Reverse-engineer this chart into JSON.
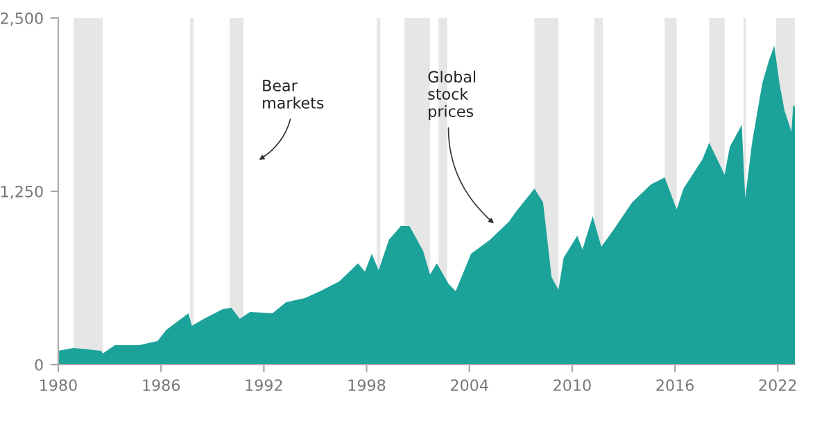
{
  "chart_data": {
    "type": "area",
    "x": [
      1980.0,
      1980.9,
      1982.5,
      1982.6,
      1983.3,
      1984.7,
      1985.8,
      1986.3,
      1987.6,
      1987.8,
      1988.5,
      1989.6,
      1990.1,
      1990.6,
      1991.2,
      1992.5,
      1993.3,
      1994.4,
      1995.3,
      1996.4,
      1997.5,
      1997.9,
      1998.3,
      1998.7,
      1999.3,
      2000.0,
      2000.5,
      2001.3,
      2001.7,
      2002.1,
      2002.8,
      2003.2,
      2004.1,
      2005.2,
      2006.3,
      2006.7,
      2007.8,
      2008.3,
      2008.8,
      2009.2,
      2009.5,
      2010.3,
      2010.6,
      2011.2,
      2011.7,
      2012.4,
      2013.5,
      2014.6,
      2015.4,
      2016.1,
      2016.5,
      2017.6,
      2018.0,
      2018.9,
      2019.2,
      2019.9,
      2020.1,
      2020.5,
      2021.1,
      2021.5,
      2021.8,
      2022.1,
      2022.4,
      2022.8,
      2022.9,
      2023.0
    ],
    "series": [
      {
        "color": "#1ba39a",
        "values": [
          100,
          120,
          100,
          80,
          140,
          140,
          170,
          250,
          370,
          280,
          330,
          400,
          410,
          330,
          380,
          370,
          450,
          480,
          530,
          600,
          730,
          670,
          800,
          680,
          900,
          1000,
          1000,
          820,
          650,
          730,
          580,
          530,
          800,
          900,
          1030,
          1100,
          1270,
          1170,
          630,
          540,
          770,
          930,
          830,
          1070,
          850,
          970,
          1170,
          1300,
          1350,
          1120,
          1270,
          1480,
          1600,
          1370,
          1570,
          1730,
          1200,
          1600,
          2030,
          2200,
          2300,
          2030,
          1830,
          1680,
          1870,
          1860
        ]
      }
    ],
    "xlim": [
      1980,
      2023
    ],
    "xticks": [
      1980,
      1986,
      1992,
      1998,
      2004,
      2010,
      2016,
      2022
    ],
    "ylim": [
      0,
      2500
    ],
    "yticks": [
      0,
      {
        "value": 1250,
        "label": "1,250"
      },
      {
        "value": 2500,
        "label": "2,500"
      }
    ],
    "bands": [
      {
        "axis": "x",
        "from": 1980.9,
        "to": 1982.6,
        "color": "#e6e6e6"
      },
      {
        "axis": "x",
        "from": 1987.7,
        "to": 1987.9,
        "color": "#e6e6e6"
      },
      {
        "axis": "x",
        "from": 1990.0,
        "to": 1990.8,
        "color": "#e6e6e6"
      },
      {
        "axis": "x",
        "from": 1998.6,
        "to": 1998.8,
        "color": "#e6e6e6"
      },
      {
        "axis": "x",
        "from": 2000.2,
        "to": 2001.7,
        "color": "#e6e6e6"
      },
      {
        "axis": "x",
        "from": 2002.2,
        "to": 2002.7,
        "color": "#e6e6e6"
      },
      {
        "axis": "x",
        "from": 2007.8,
        "to": 2009.2,
        "color": "#e6e6e6"
      },
      {
        "axis": "x",
        "from": 2011.3,
        "to": 2011.8,
        "color": "#e6e6e6"
      },
      {
        "axis": "x",
        "from": 2015.4,
        "to": 2016.1,
        "color": "#e6e6e6"
      },
      {
        "axis": "x",
        "from": 2018.0,
        "to": 2018.9,
        "color": "#e6e6e6"
      },
      {
        "axis": "x",
        "from": 2020.0,
        "to": 2020.15,
        "color": "#e6e6e6"
      },
      {
        "axis": "x",
        "from": 2021.9,
        "to": 2023.0,
        "color": "#e6e6e6"
      }
    ],
    "annotations": [
      "Bear\nmarkets",
      {
        "text": "Global\nstock\nprices",
        "x": 2005.6,
        "y": 1000
      }
    ],
    "grid": false,
    "legend": false
  }
}
